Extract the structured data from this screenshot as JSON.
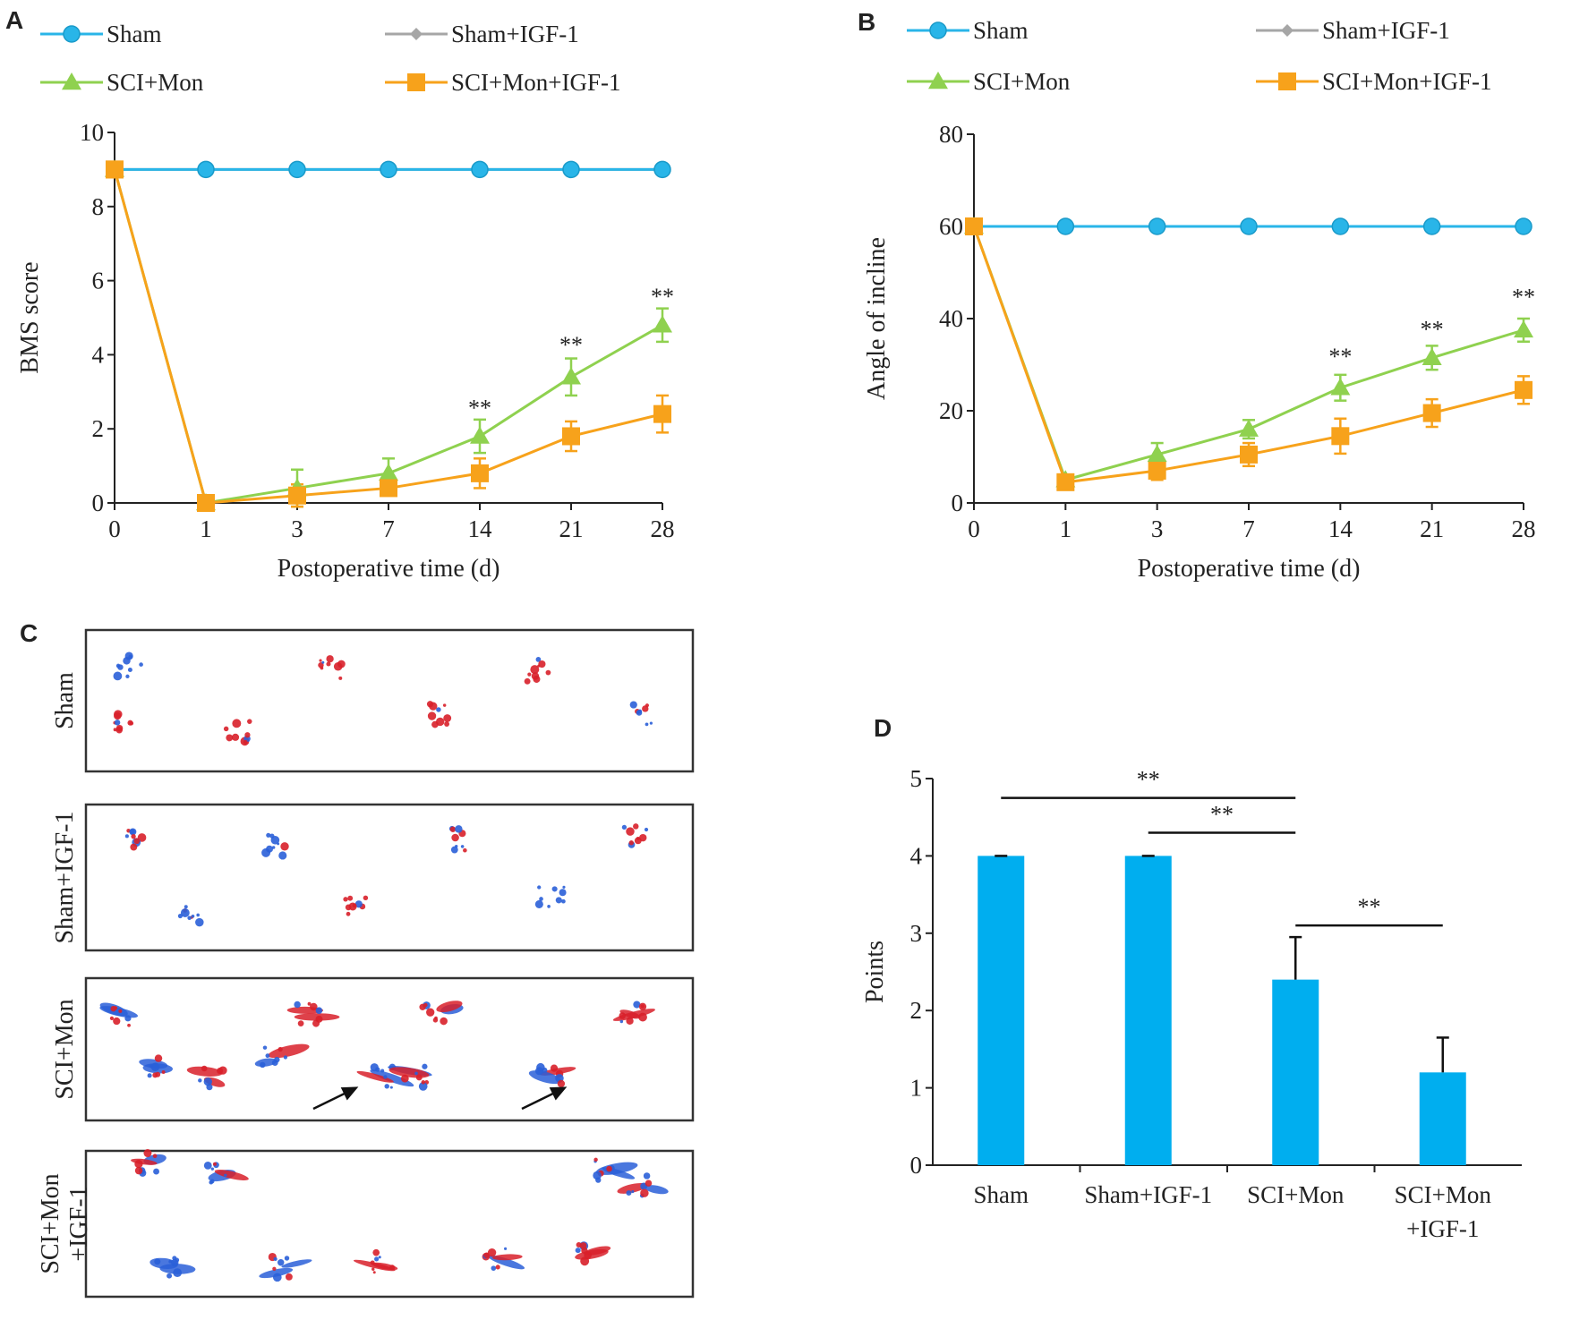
{
  "panels": {
    "A": "A",
    "B": "B",
    "C": "C",
    "D": "D"
  },
  "colors": {
    "sham": "#29b5e8",
    "sham_igf1": "#a6a6a6",
    "sci_mon": "#8fd14f",
    "sci_mon_igf1": "#f7a21b",
    "bar": "#00aeef",
    "axis": "#222222",
    "footprint_red": "#d8202a",
    "footprint_blue": "#2a5fd8"
  },
  "chart_data": [
    {
      "panel": "A",
      "type": "line",
      "title": "",
      "xlabel": "Postoperative time (d)",
      "ylabel": "BMS score",
      "categories": [
        "0",
        "1",
        "3",
        "7",
        "14",
        "21",
        "28"
      ],
      "ylim": [
        0,
        10
      ],
      "yticks": [
        "0",
        "2",
        "4",
        "6",
        "8",
        "10"
      ],
      "legend_position": "top",
      "series": [
        {
          "name": "Sham",
          "key": "sham",
          "marker": "circle",
          "values": [
            9,
            9,
            9,
            9,
            9,
            9,
            9
          ],
          "error": [
            0,
            0,
            0,
            0,
            0,
            0,
            0
          ]
        },
        {
          "name": "Sham+IGF-1",
          "key": "sham_igf1",
          "marker": "diamond",
          "values": [
            9,
            9,
            9,
            9,
            9,
            9,
            9
          ],
          "error": [
            0,
            0,
            0,
            0,
            0,
            0,
            0
          ]
        },
        {
          "name": "SCI+Mon",
          "key": "sci_mon",
          "marker": "triangle",
          "values": [
            9,
            0,
            0.4,
            0.8,
            1.8,
            3.4,
            4.8
          ],
          "error": [
            0,
            0,
            0.5,
            0.4,
            0.45,
            0.5,
            0.45
          ]
        },
        {
          "name": "SCI+Mon+IGF-1",
          "key": "sci_mon_igf1",
          "marker": "square",
          "values": [
            9,
            0,
            0.2,
            0.4,
            0.8,
            1.8,
            2.4
          ],
          "error": [
            0,
            0,
            0.3,
            0.2,
            0.4,
            0.4,
            0.5
          ]
        }
      ],
      "annotations": [
        {
          "category": "14",
          "text": "**",
          "y": 2.6
        },
        {
          "category": "21",
          "text": "**",
          "y": 4.3
        },
        {
          "category": "28",
          "text": "**",
          "y": 5.6
        }
      ]
    },
    {
      "panel": "B",
      "type": "line",
      "title": "",
      "xlabel": "Postoperative time (d)",
      "ylabel": "Angle of incline",
      "categories": [
        "0",
        "1",
        "3",
        "7",
        "14",
        "21",
        "28"
      ],
      "ylim": [
        0,
        80
      ],
      "yticks": [
        "0",
        "20",
        "40",
        "60",
        "80"
      ],
      "legend_position": "top",
      "series": [
        {
          "name": "Sham",
          "key": "sham",
          "marker": "circle",
          "values": [
            60,
            60,
            60,
            60,
            60,
            60,
            60
          ],
          "error": [
            0,
            0,
            0,
            0,
            0,
            0,
            0
          ]
        },
        {
          "name": "Sham+IGF-1",
          "key": "sham_igf1",
          "marker": "diamond",
          "values": [
            60,
            60,
            60,
            60,
            60,
            60,
            60
          ],
          "error": [
            0,
            0,
            0,
            0,
            0,
            0,
            0
          ]
        },
        {
          "name": "SCI+Mon",
          "key": "sci_mon",
          "marker": "triangle",
          "values": [
            60,
            5,
            10.5,
            16,
            25,
            31.5,
            37.5
          ],
          "error": [
            0,
            0.8,
            2.5,
            2,
            2.8,
            2.6,
            2.5
          ]
        },
        {
          "name": "SCI+Mon+IGF-1",
          "key": "sci_mon_igf1",
          "marker": "square",
          "values": [
            60,
            4.5,
            7,
            10.5,
            14.5,
            19.5,
            24.5
          ],
          "error": [
            0,
            1,
            2,
            2.5,
            3.8,
            3,
            3
          ]
        }
      ],
      "annotations": [
        {
          "category": "14",
          "text": "**",
          "y": 32
        },
        {
          "category": "21",
          "text": "**",
          "y": 38
        },
        {
          "category": "28",
          "text": "**",
          "y": 45
        }
      ]
    },
    {
      "panel": "D",
      "type": "bar",
      "title": "",
      "xlabel": "",
      "ylabel": "Points",
      "categories": [
        "Sham",
        "Sham+IGF-1",
        "SCI+Mon",
        "SCI+Mon\n+IGF-1"
      ],
      "values": [
        4,
        4,
        2.4,
        1.2
      ],
      "error": [
        0,
        0,
        0.55,
        0.45
      ],
      "ylim": [
        0,
        5
      ],
      "yticks": [
        "0",
        "1",
        "2",
        "3",
        "4",
        "5"
      ],
      "significance": [
        {
          "from": 0,
          "to": 2,
          "text": "**",
          "y": 4.75
        },
        {
          "from": 1,
          "to": 2,
          "text": "**",
          "y": 4.3
        },
        {
          "from": 2,
          "to": 3,
          "text": "**",
          "y": 3.1
        }
      ]
    }
  ],
  "footprints": {
    "rows": [
      {
        "label": "Sham"
      },
      {
        "label": "Sham+IGF-1"
      },
      {
        "label": "SCI+Mon"
      },
      {
        "label": "SCI+Mon\n+IGF-1"
      }
    ]
  }
}
